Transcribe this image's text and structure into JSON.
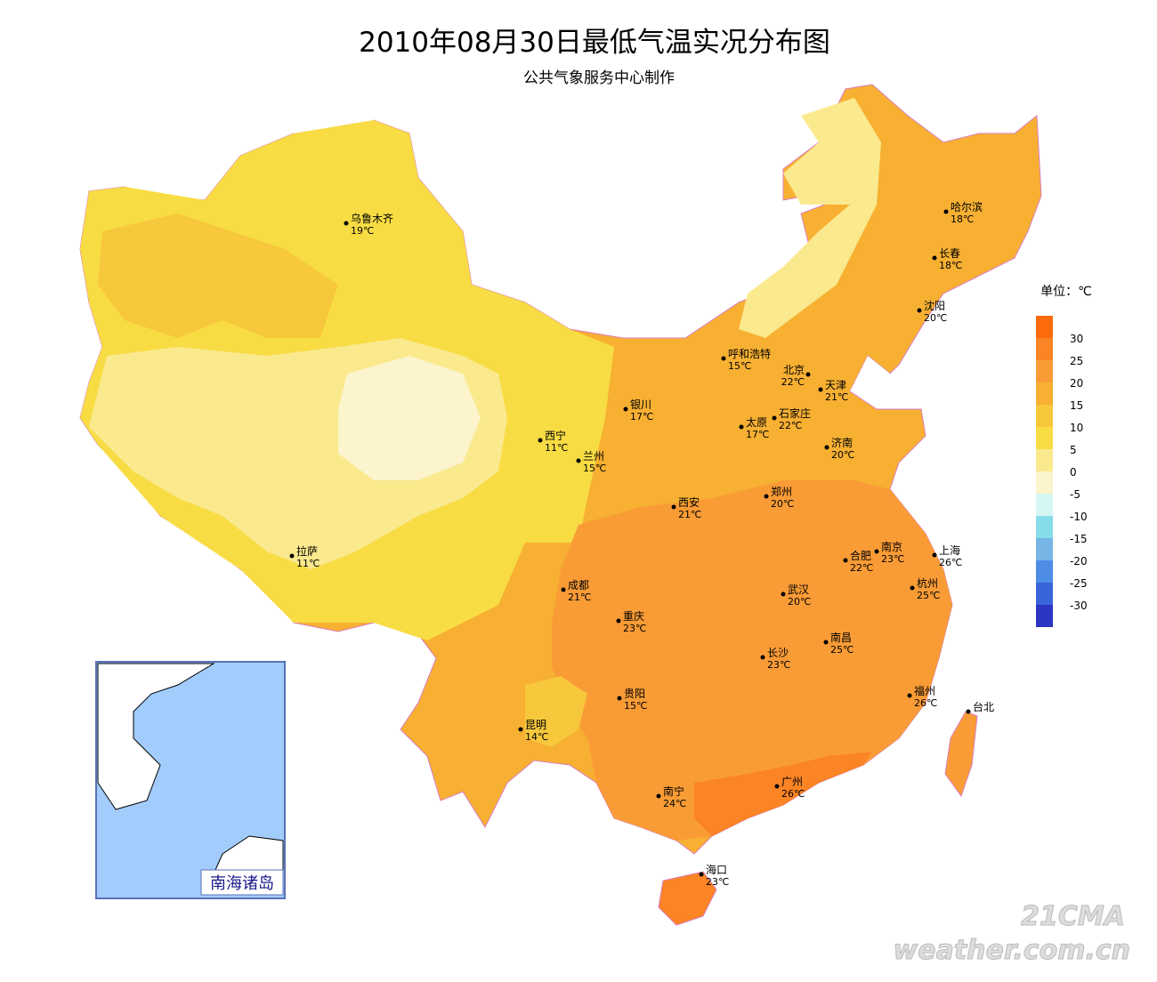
{
  "title": "2010年08月30日最低气温实况分布图",
  "subtitle": "公共气象服务中心制作",
  "legend": {
    "unit": "单位：℃",
    "ticks": [
      30,
      25,
      20,
      15,
      10,
      5,
      0,
      -5,
      -10,
      -15,
      -20,
      -25,
      -30
    ],
    "colors": [
      "#fd6a0c",
      "#fb8424",
      "#f99c36",
      "#f7b032",
      "#f7c73c",
      "#f8dc44",
      "#fbe98e",
      "#fbf4cc",
      "#d6f6f3",
      "#86dcea",
      "#76b5e6",
      "#4d8de6",
      "#3a65da",
      "#2c36c2"
    ]
  },
  "cities": [
    {
      "name": "乌鲁木齐",
      "temp": "19℃"
    },
    {
      "name": "哈尔滨",
      "temp": "18℃"
    },
    {
      "name": "长春",
      "temp": "18℃"
    },
    {
      "name": "沈阳",
      "temp": "20℃"
    },
    {
      "name": "呼和浩特",
      "temp": "15℃"
    },
    {
      "name": "北京",
      "temp": "22℃"
    },
    {
      "name": "天津",
      "temp": "21℃"
    },
    {
      "name": "银川",
      "temp": "17℃"
    },
    {
      "name": "石家庄",
      "temp": "22℃"
    },
    {
      "name": "太原",
      "temp": "17℃"
    },
    {
      "name": "西宁",
      "temp": "11℃"
    },
    {
      "name": "济南",
      "temp": "20℃"
    },
    {
      "name": "兰州",
      "temp": "15℃"
    },
    {
      "name": "郑州",
      "temp": "20℃"
    },
    {
      "name": "西安",
      "temp": "21℃"
    },
    {
      "name": "拉萨",
      "temp": "11℃"
    },
    {
      "name": "南京",
      "temp": "23℃"
    },
    {
      "name": "合肥",
      "temp": "22℃"
    },
    {
      "name": "上海",
      "temp": "26℃"
    },
    {
      "name": "杭州",
      "temp": "25℃"
    },
    {
      "name": "成都",
      "temp": "21℃"
    },
    {
      "name": "武汉",
      "temp": "20℃"
    },
    {
      "name": "重庆",
      "temp": "23℃"
    },
    {
      "name": "南昌",
      "temp": "25℃"
    },
    {
      "name": "长沙",
      "temp": "23℃"
    },
    {
      "name": "福州",
      "temp": "26℃"
    },
    {
      "name": "台北"
    },
    {
      "name": "贵阳",
      "temp": "15℃"
    },
    {
      "name": "昆明",
      "temp": "14℃"
    },
    {
      "name": "广州",
      "temp": "26℃"
    },
    {
      "name": "南宁",
      "temp": "24℃"
    },
    {
      "name": "海口",
      "temp": "23℃"
    }
  ],
  "inset_label": "南海诸岛",
  "watermark": {
    "top": "21CMA",
    "bottom": "weather.com.cn"
  }
}
